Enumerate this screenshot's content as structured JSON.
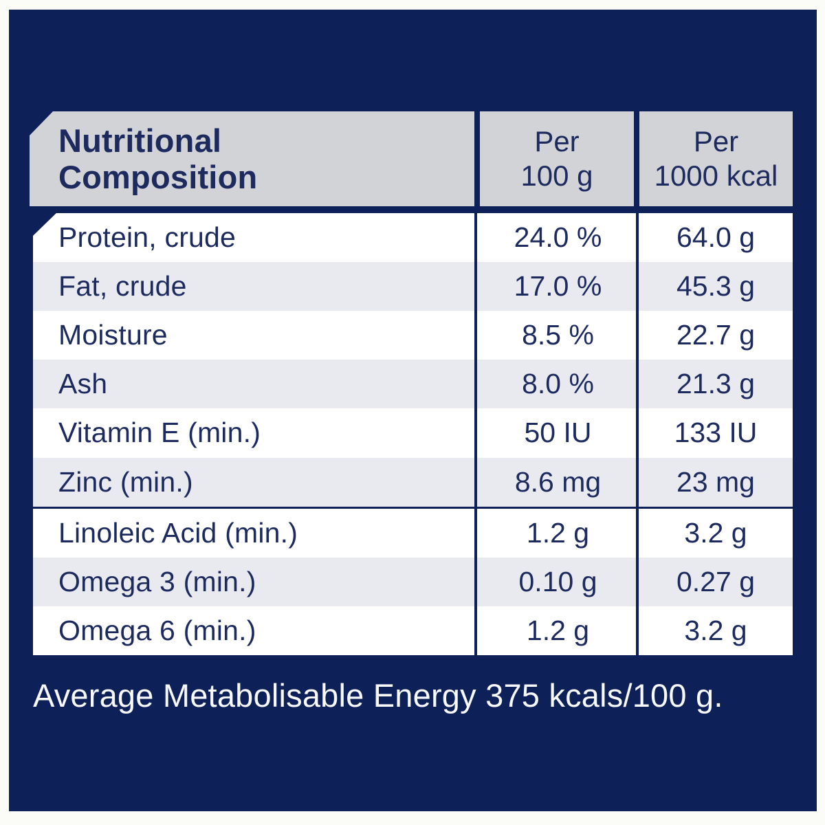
{
  "table": {
    "title": {
      "line1": "Nutritional",
      "line2": "Composition"
    },
    "columns": {
      "col2_line1": "Per",
      "col2_line2": "100 g",
      "col3_line1": "Per",
      "col3_line2": "1000 kcal"
    },
    "rows": [
      {
        "label": "Protein, crude",
        "per_100g": "24.0 %",
        "per_1000kcal": "64.0 g"
      },
      {
        "label": "Fat, crude",
        "per_100g": "17.0 %",
        "per_1000kcal": "45.3 g"
      },
      {
        "label": "Moisture",
        "per_100g": "8.5 %",
        "per_1000kcal": "22.7 g"
      },
      {
        "label": "Ash",
        "per_100g": "8.0 %",
        "per_1000kcal": "21.3 g"
      },
      {
        "label": "Vitamin E (min.)",
        "per_100g": "50 IU",
        "per_1000kcal": "133 IU"
      },
      {
        "label": "Zinc (min.)",
        "per_100g": "8.6 mg",
        "per_1000kcal": "23 mg"
      },
      {
        "label": "Linoleic Acid (min.)",
        "per_100g": "1.2 g",
        "per_1000kcal": "3.2 g"
      },
      {
        "label": "Omega 3 (min.)",
        "per_100g": "0.10 g",
        "per_1000kcal": "0.27 g"
      },
      {
        "label": "Omega 6 (min.)",
        "per_100g": "1.2 g",
        "per_1000kcal": "3.2 g"
      }
    ]
  },
  "footer": {
    "text": "Average Metabolisable Energy 375 kcals/100 g."
  },
  "colors": {
    "panel_navy": "#0e2058",
    "text_navy": "#1c2a5e",
    "header_gray": "#d2d3d7",
    "stripe_gray": "#e9eaf0",
    "row_white": "#ffffff",
    "page_background": "#fbfbf8",
    "footer_text": "#f7f8fa"
  }
}
